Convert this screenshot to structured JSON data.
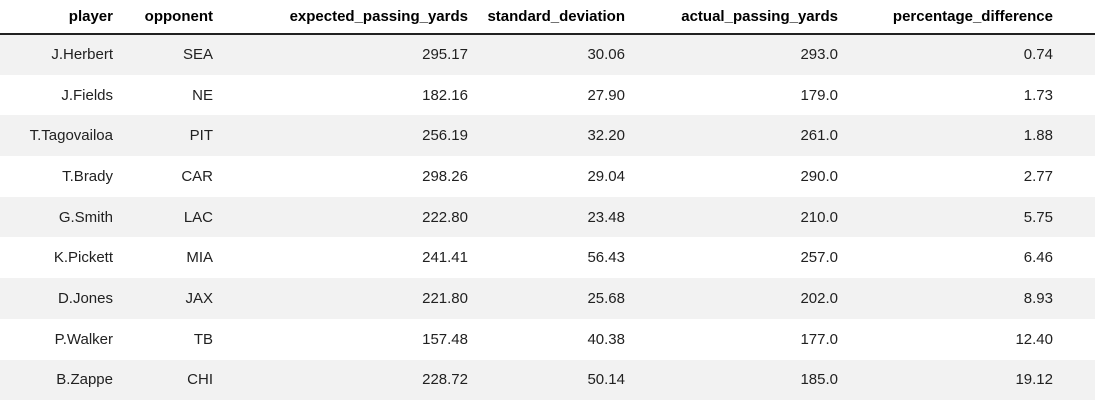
{
  "chart_data": {
    "type": "table",
    "title": "",
    "columns": [
      "player",
      "opponent",
      "expected_passing_yards",
      "standard_deviation",
      "actual_passing_yards",
      "percentage_difference"
    ],
    "rows": [
      [
        "J.Herbert",
        "SEA",
        "295.17",
        "30.06",
        "293.0",
        "0.74"
      ],
      [
        "J.Fields",
        "NE",
        "182.16",
        "27.90",
        "179.0",
        "1.73"
      ],
      [
        "T.Tagovailoa",
        "PIT",
        "256.19",
        "32.20",
        "261.0",
        "1.88"
      ],
      [
        "T.Brady",
        "CAR",
        "298.26",
        "29.04",
        "290.0",
        "2.77"
      ],
      [
        "G.Smith",
        "LAC",
        "222.80",
        "23.48",
        "210.0",
        "5.75"
      ],
      [
        "K.Pickett",
        "MIA",
        "241.41",
        "56.43",
        "257.0",
        "6.46"
      ],
      [
        "D.Jones",
        "JAX",
        "221.80",
        "25.68",
        "202.0",
        "8.93"
      ],
      [
        "P.Walker",
        "TB",
        "157.48",
        "40.38",
        "177.0",
        "12.40"
      ],
      [
        "B.Zappe",
        "CHI",
        "228.72",
        "50.14",
        "185.0",
        "19.12"
      ]
    ],
    "layout_hints": {
      "header_alignment": "right",
      "cell_alignment": "right",
      "row_striping": "odd-rows-gray",
      "grid": "off"
    }
  },
  "style": {
    "stripe_color": "#f2f2f2",
    "row_color": "#ffffff",
    "header_rule_color": "#212121",
    "header_text_color": "#000000",
    "body_text_color": "#212121",
    "background": "#ffffff"
  }
}
